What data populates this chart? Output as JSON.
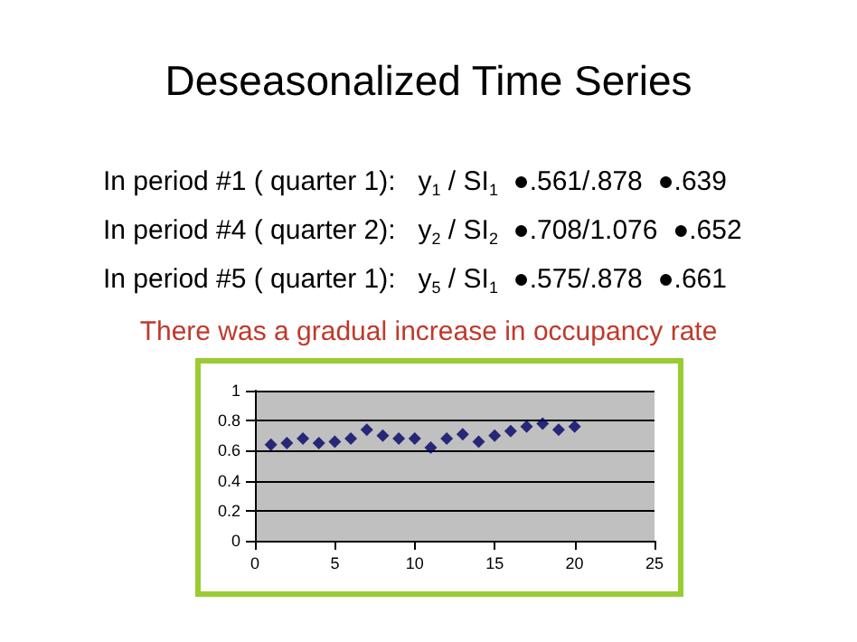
{
  "chart_data": {
    "type": "scatter",
    "title": "Deseasonalized Time Series",
    "annotations": [
      "In period #1 ( quarter 1):   y$_{1}$ / SI$_{1}$  ●.561/.878  ●.639",
      "In period #4 ( quarter 2):   y$_{2}$ / SI$_{2}$  ●.708/1.076  ●.652",
      "In period #5 ( quarter 1):   y$_{5}$ / SI$_{1}$  ●.575/.878  ●.661",
      "There was a gradual increase in occupancy rate"
    ],
    "x": [
      1,
      2,
      3,
      4,
      5,
      6,
      7,
      8,
      9,
      10,
      11,
      12,
      13,
      14,
      15,
      16,
      17,
      18,
      19,
      20
    ],
    "values": [
      0.64,
      0.65,
      0.68,
      0.65,
      0.66,
      0.68,
      0.74,
      0.7,
      0.68,
      0.68,
      0.62,
      0.68,
      0.71,
      0.66,
      0.7,
      0.73,
      0.76,
      0.78,
      0.74,
      0.76
    ],
    "color": "#000066",
    "marker": "diamond",
    "grid": "y",
    "xlim": [
      0,
      25
    ],
    "xticks": [
      0,
      5,
      10,
      15,
      20,
      25
    ],
    "ylim": [
      0,
      1
    ],
    "yticks": [
      0,
      0.2,
      0.4,
      0.6,
      0.8,
      1
    ]
  }
}
